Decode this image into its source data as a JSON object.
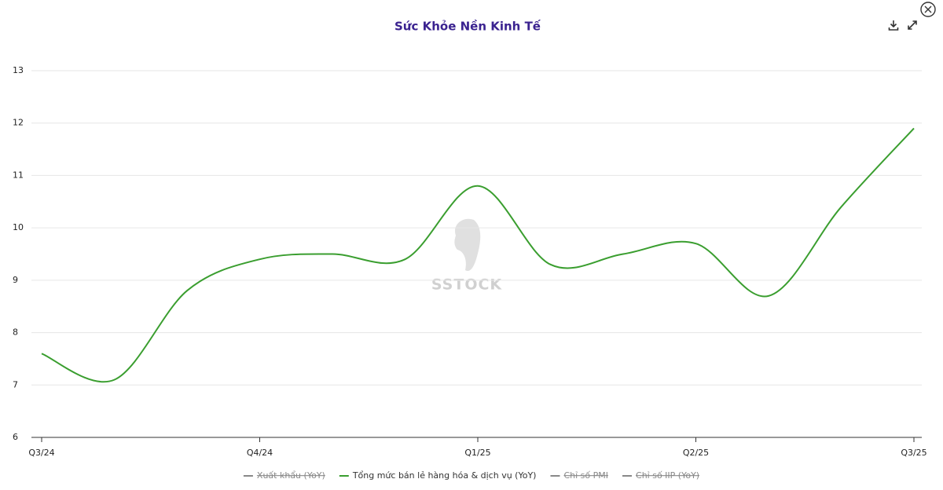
{
  "chart_data": {
    "type": "line",
    "title": "Sức Khỏe Nền Kinh Tế",
    "watermark": "SSTOCK",
    "categories": [
      "Q3/24",
      null,
      null,
      "Q4/24",
      null,
      null,
      "Q1/25",
      null,
      null,
      "Q2/25",
      null,
      null,
      "Q3/25"
    ],
    "series": [
      {
        "name": "Xuất khẩu (YoY)",
        "color": "#666666",
        "visible": false
      },
      {
        "name": "Tổng mức bán lẻ hàng hóa & dịch vụ (YoY)",
        "color": "#3a9e2f",
        "visible": true,
        "values": [
          7.6,
          7.1,
          8.8,
          9.4,
          9.5,
          9.4,
          10.8,
          9.3,
          9.5,
          9.7,
          8.7,
          10.4,
          11.9
        ]
      },
      {
        "name": "Chỉ số PMI",
        "color": "#666666",
        "visible": false
      },
      {
        "name": "Chỉ số IIP (YoY)",
        "color": "#666666",
        "visible": false
      }
    ],
    "ylim": [
      6,
      13
    ],
    "yticks": [
      6,
      7,
      8,
      9,
      10,
      11,
      12,
      13
    ],
    "grid": true
  }
}
